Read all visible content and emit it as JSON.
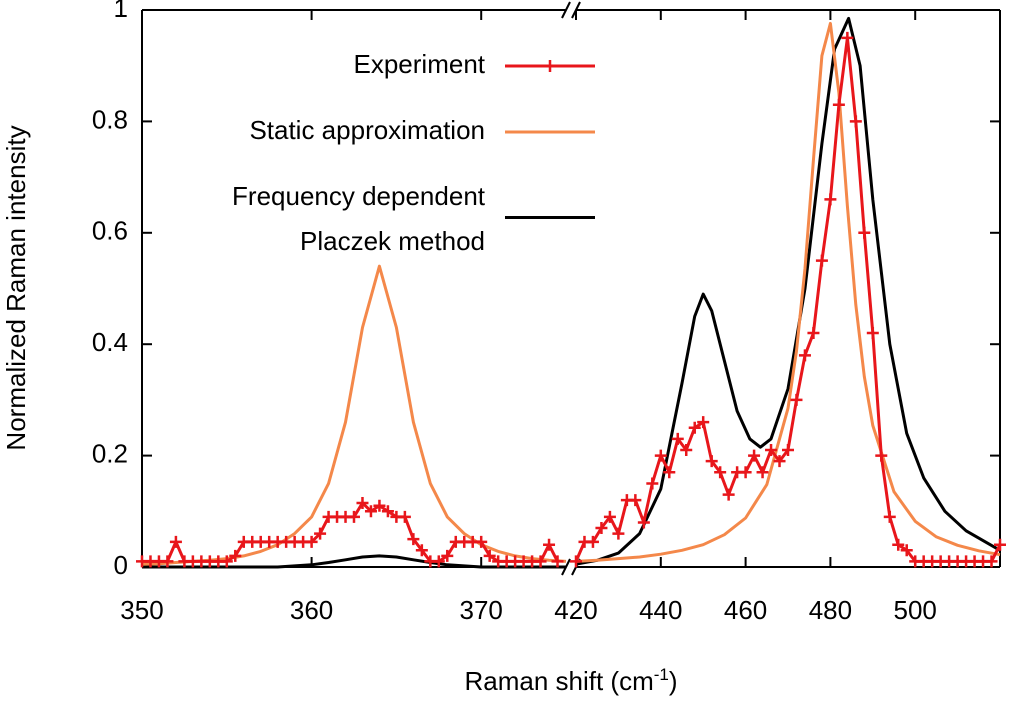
{
  "chart_data": {
    "type": "line",
    "xlabel": [
      "Raman shift (cm",
      "-1",
      ")"
    ],
    "ylabel": "Normalized Raman intensity",
    "x_segments": [
      {
        "xlim": [
          350,
          375
        ],
        "xticks": [
          350,
          360,
          370
        ]
      },
      {
        "xlim": [
          420,
          520
        ],
        "xticks": [
          420,
          440,
          460,
          480,
          500
        ]
      }
    ],
    "ylim": [
      0,
      1
    ],
    "yticks": [
      0,
      0.2,
      0.4,
      0.6,
      0.8,
      1
    ],
    "grid": false,
    "series": [
      {
        "name": [
          "Experiment"
        ],
        "color": "#e8161b",
        "marker": "+",
        "x": [
          350,
          350.5,
          351,
          351.5,
          352,
          352.5,
          353,
          353.5,
          354,
          354.5,
          355,
          355.5,
          356,
          356.5,
          357,
          357.5,
          358,
          358.5,
          359,
          359.5,
          360,
          360.5,
          361,
          361.5,
          362,
          362.5,
          363,
          363.5,
          364,
          364.5,
          365,
          365.5,
          366,
          366.5,
          367,
          367.5,
          368,
          368.5,
          369,
          369.5,
          370,
          370.5,
          371,
          371.5,
          372,
          372.5,
          373,
          373.5,
          374,
          374.5,
          null,
          420,
          422,
          424,
          426,
          428,
          430,
          432,
          434,
          436,
          438,
          440,
          442,
          444,
          446,
          448,
          450,
          452,
          454,
          456,
          458,
          460,
          462,
          464,
          466,
          468,
          470,
          472,
          474,
          476,
          478,
          480,
          482,
          484,
          486,
          488,
          490,
          492,
          494,
          496,
          498,
          500,
          502,
          504,
          506,
          508,
          510,
          512,
          514,
          516,
          518,
          520
        ],
        "values": [
          0.01,
          0.01,
          0.01,
          0.01,
          0.045,
          0.01,
          0.01,
          0.01,
          0.01,
          0.01,
          0.01,
          0.02,
          0.045,
          0.045,
          0.045,
          0.045,
          0.045,
          0.045,
          0.045,
          0.045,
          0.045,
          0.06,
          0.09,
          0.09,
          0.09,
          0.09,
          0.115,
          0.1,
          0.11,
          0.1,
          0.09,
          0.09,
          0.05,
          0.03,
          0.01,
          0.01,
          0.02,
          0.045,
          0.045,
          0.045,
          0.045,
          0.02,
          0.01,
          0.01,
          0.01,
          0.01,
          0.01,
          0.01,
          0.04,
          0.01,
          null,
          0.01,
          0.045,
          0.045,
          0.07,
          0.09,
          0.06,
          0.12,
          0.12,
          0.08,
          0.15,
          0.2,
          0.17,
          0.23,
          0.21,
          0.25,
          0.26,
          0.19,
          0.17,
          0.13,
          0.17,
          0.17,
          0.2,
          0.17,
          0.21,
          0.19,
          0.21,
          0.3,
          0.38,
          0.42,
          0.55,
          0.66,
          0.83,
          0.95,
          0.8,
          0.6,
          0.42,
          0.2,
          0.09,
          0.04,
          0.03,
          0.01,
          0.01,
          0.01,
          0.01,
          0.01,
          0.01,
          0.01,
          0.01,
          0.01,
          0.01,
          0.04
        ]
      },
      {
        "name": [
          "Static approximation"
        ],
        "color": "#f4884a",
        "x": [
          350,
          351,
          352,
          353,
          354,
          355,
          356,
          357,
          358,
          359,
          360,
          361,
          362,
          363,
          364,
          365,
          366,
          367,
          368,
          369,
          370,
          371,
          372,
          373,
          374,
          375,
          null,
          420,
          425,
          430,
          435,
          440,
          445,
          450,
          455,
          460,
          465,
          470,
          472,
          474,
          476,
          478,
          480,
          482,
          484,
          486,
          488,
          490,
          495,
          500,
          505,
          510,
          515,
          520
        ],
        "values": [
          0.005,
          0.006,
          0.008,
          0.01,
          0.012,
          0.015,
          0.02,
          0.028,
          0.04,
          0.06,
          0.09,
          0.15,
          0.26,
          0.43,
          0.54,
          0.43,
          0.26,
          0.15,
          0.09,
          0.06,
          0.04,
          0.028,
          0.02,
          0.015,
          0.012,
          0.01,
          null,
          0.01,
          0.012,
          0.015,
          0.018,
          0.023,
          0.03,
          0.04,
          0.058,
          0.088,
          0.148,
          0.285,
          0.388,
          0.536,
          0.73,
          0.918,
          0.976,
          0.851,
          0.648,
          0.471,
          0.342,
          0.254,
          0.135,
          0.082,
          0.054,
          0.039,
          0.029,
          0.022
        ]
      },
      {
        "name": [
          "Frequency dependent",
          "Placzek method"
        ],
        "color": "#000000",
        "x": [
          350,
          352,
          354,
          356,
          358,
          359,
          360,
          361,
          362,
          363,
          364,
          365,
          366,
          367,
          368,
          369,
          370,
          372,
          375,
          null,
          420,
          425,
          430,
          435,
          440,
          445,
          448,
          450,
          452,
          455,
          458,
          461,
          463.5,
          466,
          470,
          474,
          478,
          481,
          484.3,
          487,
          490,
          494,
          498,
          502,
          507,
          512,
          520
        ],
        "values": [
          0,
          0,
          0,
          0,
          0,
          0.002,
          0.004,
          0.008,
          0.013,
          0.018,
          0.02,
          0.018,
          0.013,
          0.008,
          0.004,
          0.002,
          0,
          0,
          0,
          null,
          0.005,
          0.012,
          0.025,
          0.06,
          0.14,
          0.33,
          0.45,
          0.49,
          0.46,
          0.37,
          0.28,
          0.23,
          0.215,
          0.23,
          0.32,
          0.5,
          0.76,
          0.93,
          0.985,
          0.9,
          0.66,
          0.4,
          0.24,
          0.16,
          0.1,
          0.065,
          0.03
        ]
      }
    ]
  }
}
